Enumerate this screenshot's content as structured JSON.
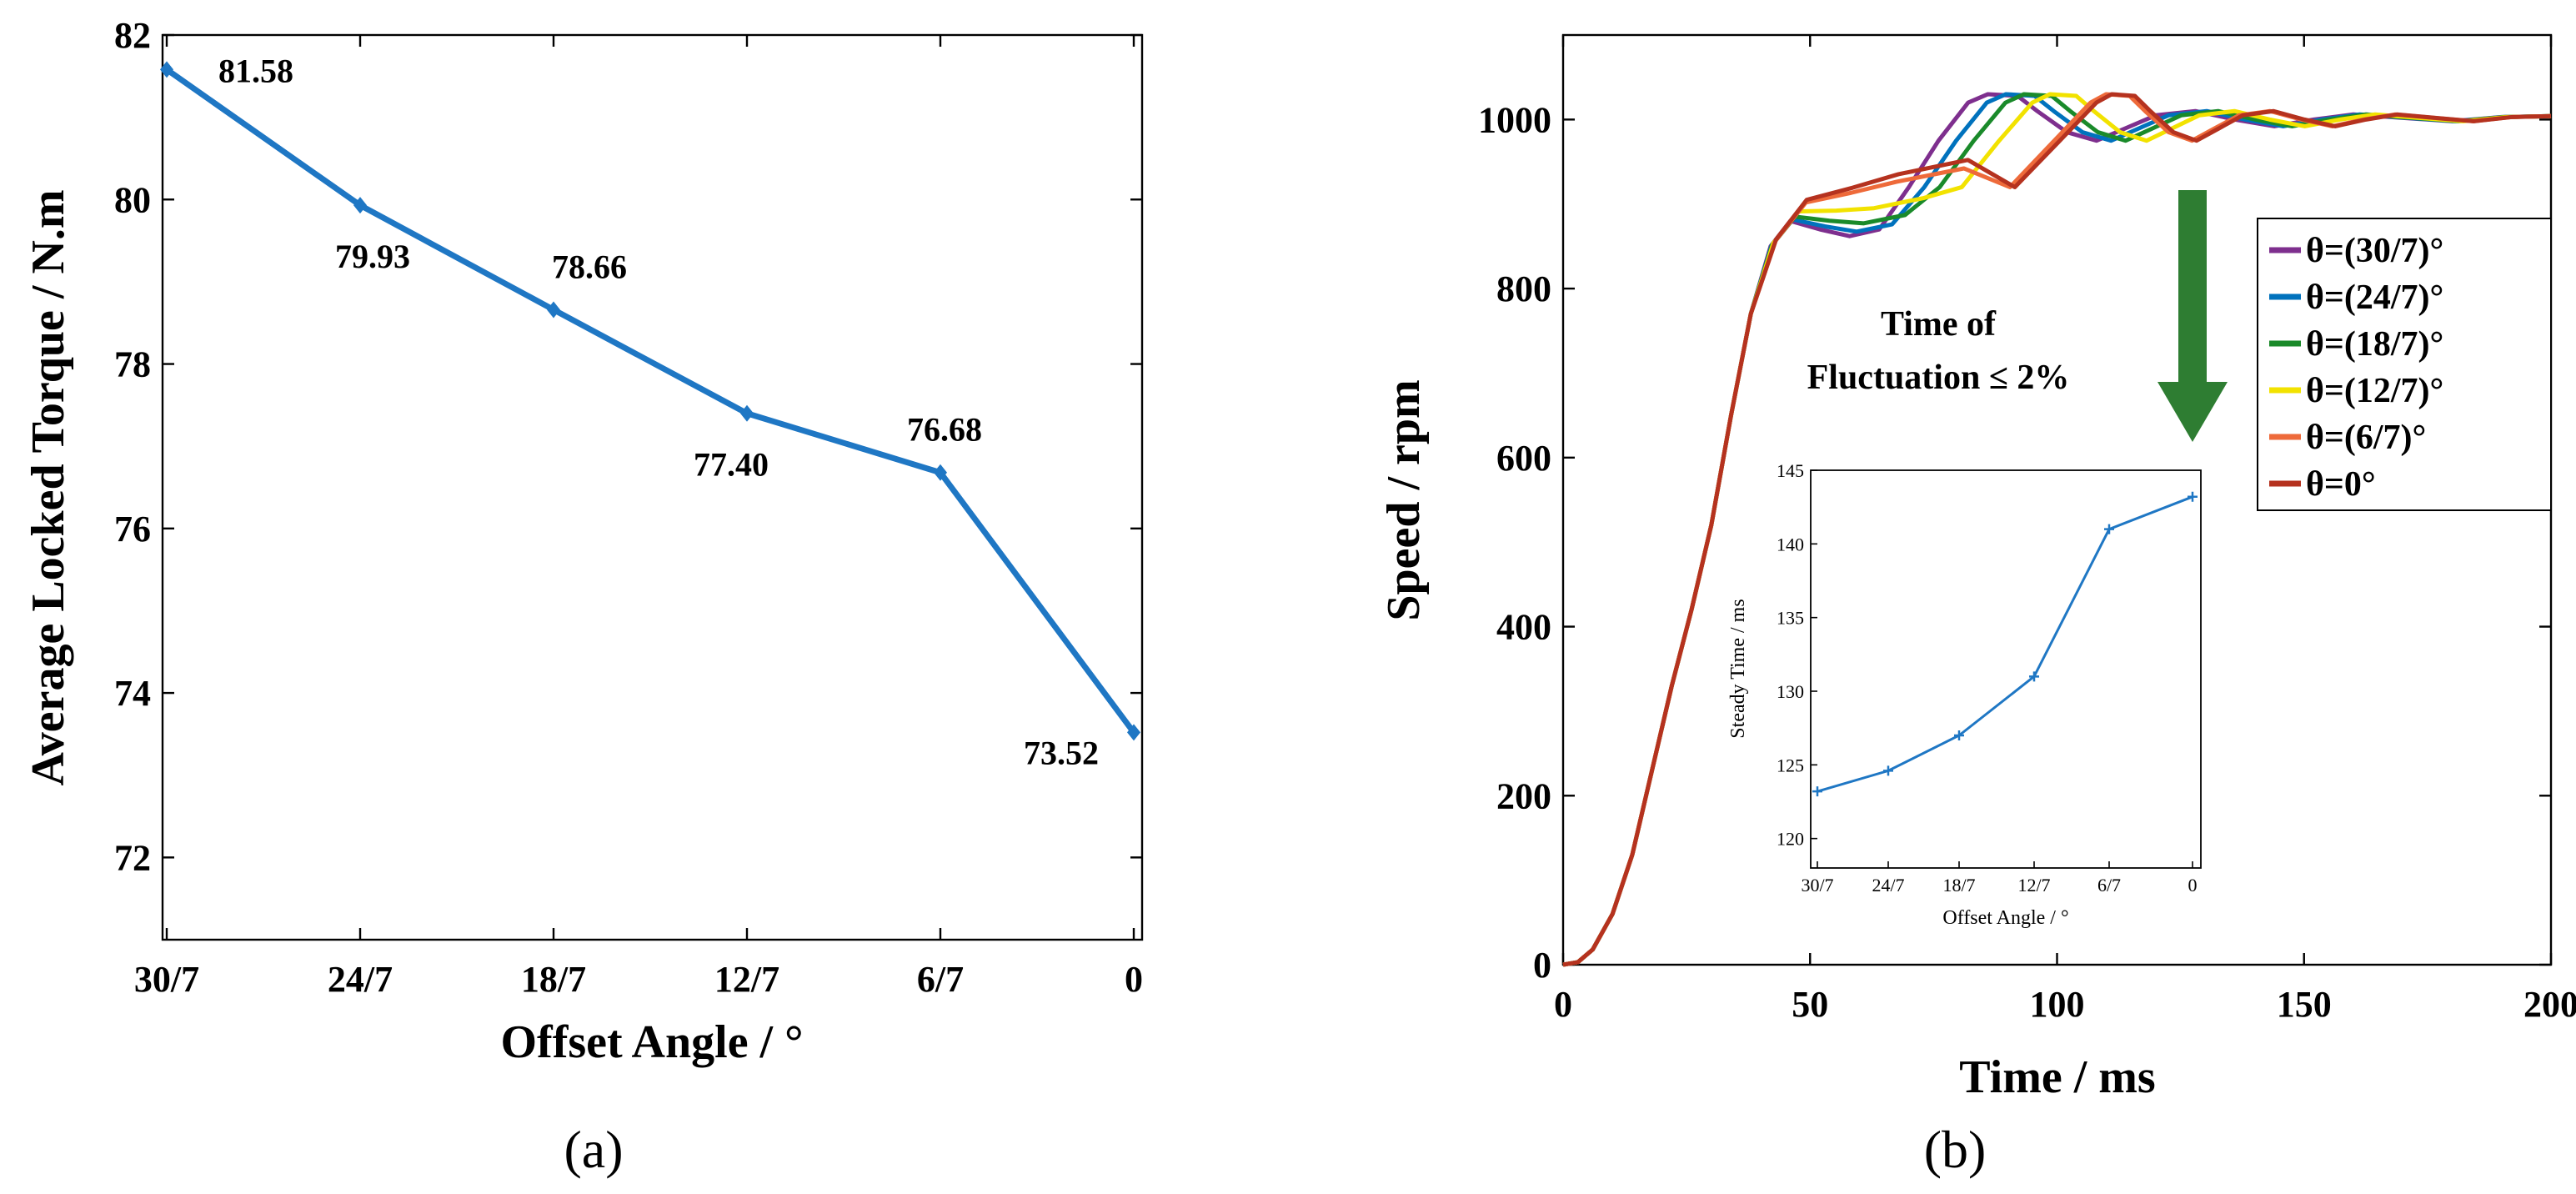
{
  "panels": {
    "a": "(a)",
    "b": "(b)"
  },
  "chart_data": [
    {
      "id": "a",
      "type": "line",
      "title": "",
      "xlabel": "Offset Angle / °",
      "ylabel": "Average Locked Torque / N.m",
      "categories": [
        "30/7",
        "24/7",
        "18/7",
        "12/7",
        "6/7",
        "0"
      ],
      "values": [
        81.58,
        79.93,
        78.66,
        77.4,
        76.68,
        73.52
      ],
      "data_labels": [
        "81.58",
        "79.93",
        "78.66",
        "77.40",
        "76.68",
        "73.52"
      ],
      "ylim": [
        71,
        82
      ],
      "yticks": [
        72,
        74,
        76,
        78,
        80,
        82
      ],
      "color": "#1f77c4",
      "grid": false
    },
    {
      "id": "b",
      "type": "line",
      "title": "",
      "xlabel": "Time / ms",
      "ylabel": "Speed / rpm",
      "xlim": [
        0,
        200
      ],
      "ylim": [
        0,
        1100
      ],
      "xticks": [
        0,
        50,
        100,
        150,
        200
      ],
      "yticks": [
        0,
        200,
        400,
        600,
        800,
        1000
      ],
      "legend_position": "right",
      "series": [
        {
          "name": "θ=(30/7)°",
          "color": "#7e2f8e",
          "delay": 0,
          "dip": 868
        },
        {
          "name": "θ=(24/7)°",
          "color": "#0072bd",
          "delay": 3.2,
          "dip": 874
        },
        {
          "name": "θ=(18/7)°",
          "color": "#1a8a2a",
          "delay": 6.4,
          "dip": 885
        },
        {
          "name": "θ=(12/7)°",
          "color": "#f2e200",
          "delay": 11,
          "dip": 905
        },
        {
          "name": "θ=(6/7)°",
          "color": "#ee6a3a",
          "delay": 21,
          "dip": 940
        },
        {
          "name": "θ=0°",
          "color": "#b5321f",
          "delay": 22,
          "dip": 950
        }
      ],
      "annotation": {
        "line1": "Time of",
        "line2": "Fluctuation ≤ 2%",
        "arrow_color": "#2e7d32"
      },
      "inset": {
        "type": "line",
        "xlabel": "Offset Angle / °",
        "ylabel": "Steady Time / ms",
        "categories": [
          "30/7",
          "24/7",
          "18/7",
          "12/7",
          "6/7",
          "0"
        ],
        "values": [
          123.2,
          124.6,
          127.0,
          131.0,
          141.0,
          143.2
        ],
        "ylim": [
          118,
          145
        ],
        "yticks": [
          120,
          125,
          130,
          135,
          140,
          145
        ],
        "color": "#1f77c4"
      }
    }
  ]
}
